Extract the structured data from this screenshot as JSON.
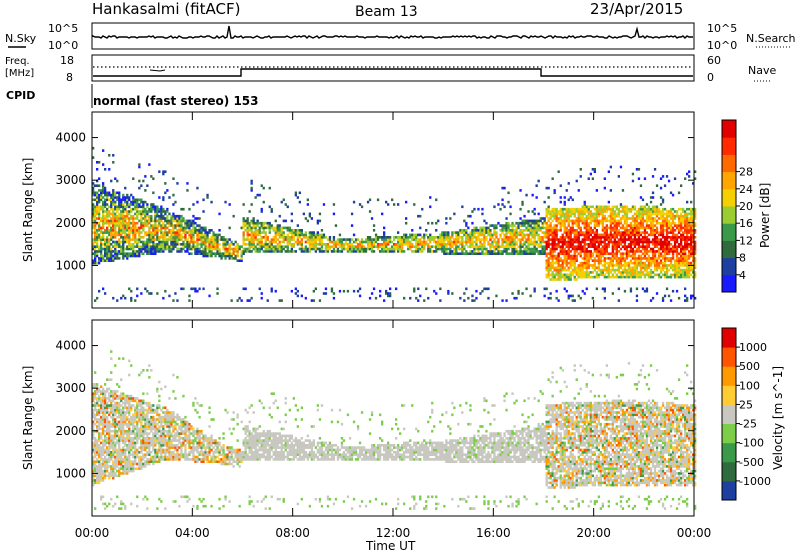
{
  "header": {
    "station": "Hankasalmi (fitACF)",
    "beam": "Beam 13",
    "date": "23/Apr/2015"
  },
  "top_panels": {
    "nsky_label": "N.Sky",
    "nsearch_label": "N.Search",
    "nsky_ticks": [
      "10^5",
      "10^0"
    ],
    "nsearch_ticks": [
      "10^5",
      "10^0"
    ],
    "freq_label_1": "Freq.",
    "freq_label_2": "[MHz]",
    "freq_ticks": [
      "18",
      "8"
    ],
    "nave_label": "Nave",
    "nave_ticks": [
      "60",
      "0"
    ],
    "cpid_label": "CPID",
    "cpid_text": "normal (fast stereo) 153"
  },
  "chart_data": [
    {
      "type": "heatmap",
      "title": "",
      "ylabel": "Slant Range [km]",
      "xlabel": "",
      "ylim": [
        0,
        4600
      ],
      "yticks": [
        "1000",
        "2000",
        "3000",
        "4000"
      ],
      "colorbar": {
        "label": "Power [dB]",
        "ticks": [
          "4",
          "8",
          "12",
          "16",
          "20",
          "24",
          "28"
        ],
        "colors": [
          "#1a1aff",
          "#1c3fa0",
          "#2f6b3c",
          "#3b9a4a",
          "#9acd32",
          "#f5d000",
          "#ffa500",
          "#ff6a00",
          "#ff2a00",
          "#e00000"
        ]
      },
      "bands": [
        {
          "t": [
            0,
            3,
            5,
            6
          ],
          "r_low": [
            1000,
            1300,
            1150,
            1050
          ],
          "r_high": [
            2900,
            2300,
            1700,
            1450
          ],
          "kind": "mixed"
        },
        {
          "t": [
            6,
            10,
            14,
            18
          ],
          "r_low": [
            1250,
            1300,
            1250,
            1250
          ],
          "r_high": [
            2100,
            1600,
            1750,
            2100
          ],
          "kind": "moderate"
        },
        {
          "t": [
            18,
            21,
            24
          ],
          "r_low": [
            600,
            700,
            700
          ],
          "r_high": [
            2300,
            2400,
            2300
          ],
          "kind": "strong"
        }
      ]
    },
    {
      "type": "heatmap",
      "title": "",
      "ylabel": "Slant Range [km]",
      "xlabel": "Time UT",
      "ylim": [
        0,
        4600
      ],
      "yticks": [
        "1000",
        "2000",
        "3000",
        "4000"
      ],
      "xticks": [
        "00:00",
        "04:00",
        "08:00",
        "12:00",
        "16:00",
        "20:00",
        "00:00"
      ],
      "colorbar": {
        "label": "Velocity [m s^-1]",
        "ticks": [
          "1000",
          "500",
          "100",
          "25",
          "-25",
          "-100",
          "-500",
          "-1000"
        ],
        "colors": [
          "#1c3fa0",
          "#2f6b3c",
          "#3b9a4a",
          "#7ccd4a",
          "#c8c8c0",
          "#ffcc33",
          "#ff9900",
          "#ff5500",
          "#e00000"
        ]
      },
      "bands": [
        {
          "t": [
            0,
            3,
            5,
            6
          ],
          "r_low": [
            700,
            1300,
            1200,
            1100
          ],
          "r_high": [
            3100,
            2500,
            1700,
            1500
          ],
          "kind": "mixed"
        },
        {
          "t": [
            6,
            10,
            14,
            18
          ],
          "r_low": [
            1250,
            1300,
            1250,
            1250
          ],
          "r_high": [
            2100,
            1600,
            1750,
            2100
          ],
          "kind": "gray"
        },
        {
          "t": [
            18,
            21,
            24
          ],
          "r_low": [
            600,
            700,
            700
          ],
          "r_high": [
            2600,
            2700,
            2600
          ],
          "kind": "mixed"
        }
      ]
    }
  ]
}
